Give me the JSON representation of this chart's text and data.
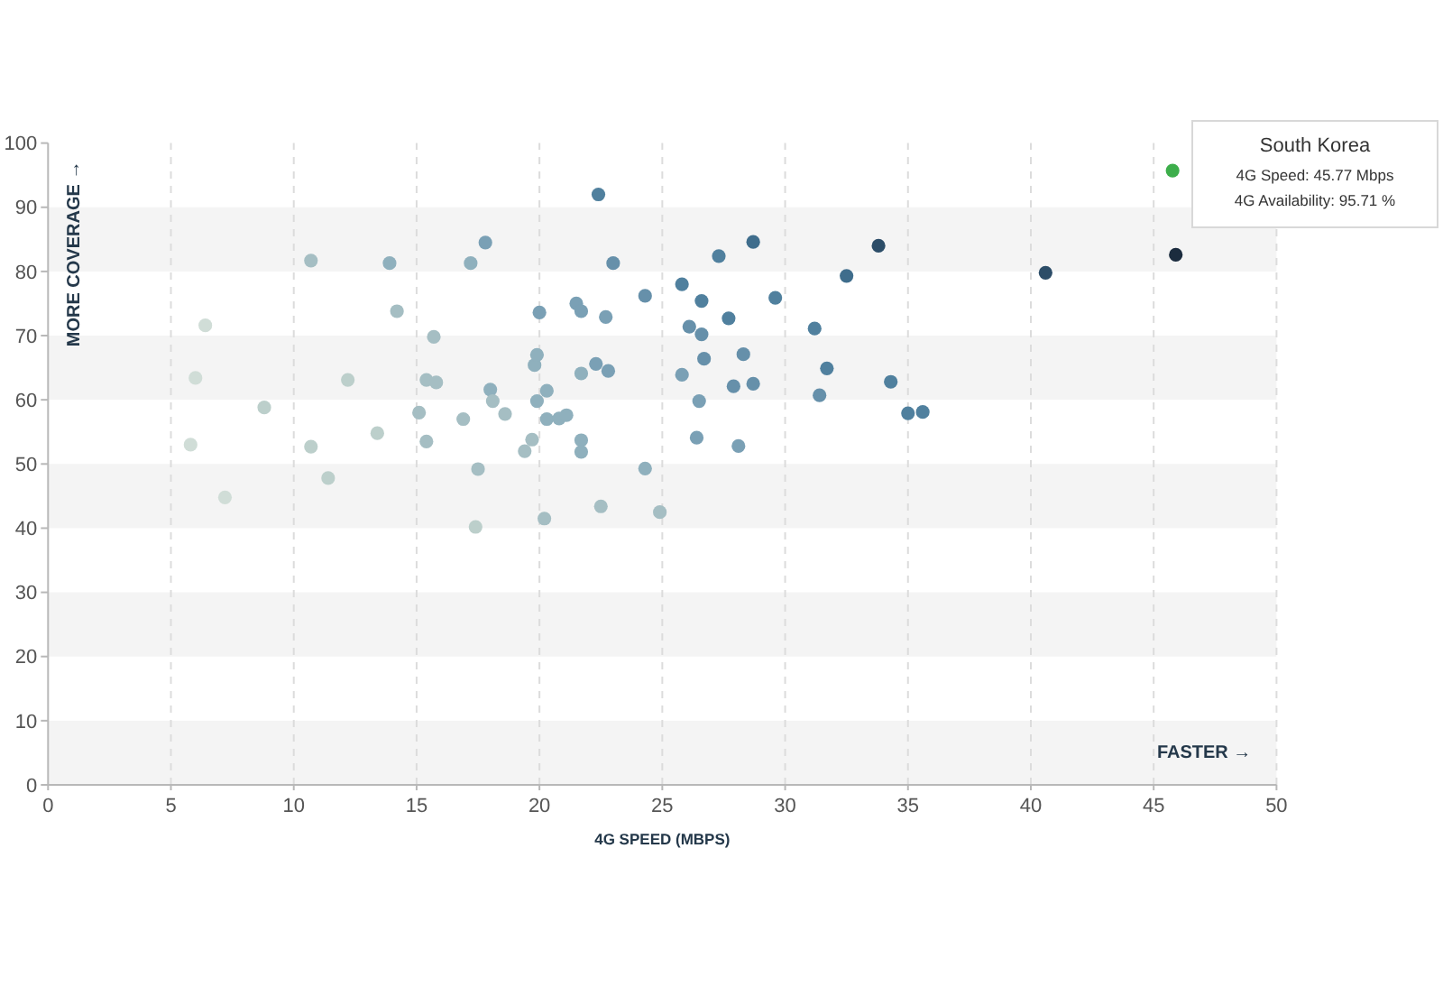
{
  "chart_data": {
    "type": "scatter",
    "xlabel": "4G SPEED (MBPS)",
    "ylabel": "MORE COVERAGE →",
    "annotations": [
      "FASTER →",
      "South Korea\n4G Speed: 45.77 Mbps\n4G Availability: 95.71 %"
    ],
    "xlim": [
      0,
      50
    ],
    "ylim": [
      0,
      100
    ],
    "xticks": [
      0,
      5,
      10,
      15,
      20,
      25,
      30,
      35,
      40,
      45,
      50
    ],
    "yticks": [
      0,
      10,
      20,
      30,
      40,
      50,
      60,
      70,
      80,
      90,
      100
    ],
    "grid": true,
    "marker": "circle",
    "series": [
      {
        "x": [
          22.4,
          45.9,
          40.6,
          33.8,
          32.5,
          28.7,
          27.3,
          23.0,
          17.8,
          17.2,
          13.9,
          10.7,
          14.2,
          6.4,
          6.0,
          5.8,
          7.2,
          8.8,
          10.7,
          11.4,
          12.2,
          13.4,
          15.1,
          15.4,
          15.4,
          15.8,
          15.7,
          16.9,
          17.5,
          17.4,
          18.0,
          18.1,
          18.6,
          19.4,
          19.7,
          19.8,
          19.9,
          20.0,
          19.9,
          20.3,
          20.3,
          20.2,
          20.8,
          21.1,
          22.5,
          21.5,
          21.7,
          21.7,
          21.7,
          21.7,
          22.3,
          22.8,
          22.7,
          24.3,
          24.9,
          24.3,
          25.8,
          26.1,
          26.6,
          26.6,
          26.7,
          25.8,
          26.5,
          26.4,
          27.7,
          28.3,
          27.9,
          28.7,
          28.1,
          29.6,
          31.2,
          31.7,
          31.4,
          34.3,
          35.0,
          35.6
        ],
        "values": [
          92.0,
          82.6,
          79.8,
          84.0,
          79.3,
          84.6,
          82.4,
          81.3,
          84.5,
          81.3,
          81.3,
          81.7,
          73.8,
          71.6,
          63.4,
          53.0,
          44.8,
          58.8,
          52.7,
          47.8,
          63.1,
          54.8,
          58.0,
          53.5,
          63.1,
          62.7,
          69.8,
          57.0,
          49.2,
          40.2,
          61.6,
          59.8,
          57.8,
          52.0,
          53.8,
          65.4,
          67.0,
          73.6,
          59.8,
          61.4,
          57.0,
          41.5,
          57.1,
          57.6,
          43.4,
          75.0,
          73.8,
          64.1,
          53.7,
          51.9,
          65.6,
          64.5,
          72.9,
          49.3,
          42.5,
          76.2,
          78.0,
          71.4,
          75.4,
          70.2,
          66.4,
          63.9,
          59.8,
          54.1,
          72.7,
          67.1,
          62.1,
          62.5,
          52.8,
          75.9,
          71.1,
          64.9,
          60.7,
          62.8,
          57.9,
          58.1
        ],
        "colors": [
          "#50809e",
          "#1b2c3e",
          "#2c4d68",
          "#2c4d68",
          "#3f6d8c",
          "#3f6d8c",
          "#50809e",
          "#6690aa",
          "#7aa0b5",
          "#8fb0bd",
          "#8fb0bd",
          "#a5bec3",
          "#a5bec3",
          "#d0ddd7",
          "#d0ddd7",
          "#d0ddd7",
          "#d0ddd7",
          "#bccfcb",
          "#bccfcb",
          "#bccfcb",
          "#bccfcb",
          "#bccfcb",
          "#a5bec3",
          "#a5bec3",
          "#a5bec3",
          "#a5bec3",
          "#a5bec3",
          "#a5bec3",
          "#a5bec3",
          "#bccfcb",
          "#8fb0bd",
          "#a5bec3",
          "#a5bec3",
          "#a5bec3",
          "#a5bec3",
          "#8fb0bd",
          "#8fb0bd",
          "#7aa0b5",
          "#8fb0bd",
          "#8fb0bd",
          "#8fb0bd",
          "#a5bec3",
          "#8fb0bd",
          "#8fb0bd",
          "#a5bec3",
          "#7aa0b5",
          "#7aa0b5",
          "#8fb0bd",
          "#8fb0bd",
          "#8fb0bd",
          "#7aa0b5",
          "#7aa0b5",
          "#7aa0b5",
          "#8fb0bd",
          "#a5bec3",
          "#6690aa",
          "#50809e",
          "#6690aa",
          "#50809e",
          "#6690aa",
          "#6690aa",
          "#7aa0b5",
          "#7aa0b5",
          "#7aa0b5",
          "#50809e",
          "#6690aa",
          "#6690aa",
          "#6690aa",
          "#7aa0b5",
          "#50809e",
          "#50809e",
          "#50809e",
          "#6690aa",
          "#50809e",
          "#50809e",
          "#50809e"
        ]
      },
      {
        "x": [
          45.77
        ],
        "values": [
          95.71
        ],
        "color": "#3dae4b"
      }
    ]
  }
}
